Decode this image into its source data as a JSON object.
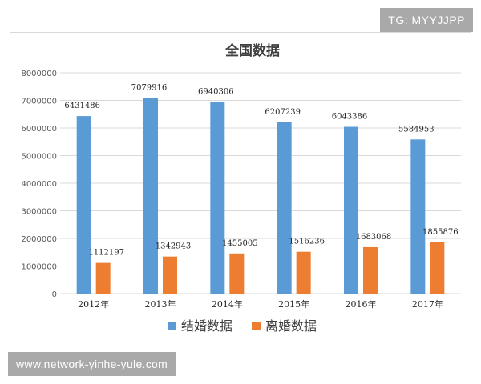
{
  "watermarks": {
    "top": "TG: MYYJJPP",
    "bottom": "www.network-yinhe-yule.com"
  },
  "colors": {
    "marriage": "#5b9bd5",
    "divorce": "#ed7d31",
    "grid": "#d9d9d9",
    "text": "#595959"
  },
  "chart_data": {
    "type": "bar",
    "title": "全国数据",
    "xlabel": "",
    "ylabel": "",
    "categories": [
      "2012年",
      "2013年",
      "2014年",
      "2015年",
      "2016年",
      "2017年"
    ],
    "series": [
      {
        "name": "结婚数据",
        "values": [
          6431486,
          7079916,
          6940306,
          6207239,
          6043386,
          5584953
        ]
      },
      {
        "name": "离婚数据",
        "values": [
          1112197,
          1342943,
          1455005,
          1516236,
          1683068,
          1855876
        ]
      }
    ],
    "ylim": [
      0,
      8000000
    ],
    "yticks": [
      "0",
      "1000000",
      "2000000",
      "3000000",
      "4000000",
      "5000000",
      "6000000",
      "7000000",
      "8000000"
    ],
    "data_labels": true,
    "grid": true,
    "legend_position": "bottom"
  }
}
